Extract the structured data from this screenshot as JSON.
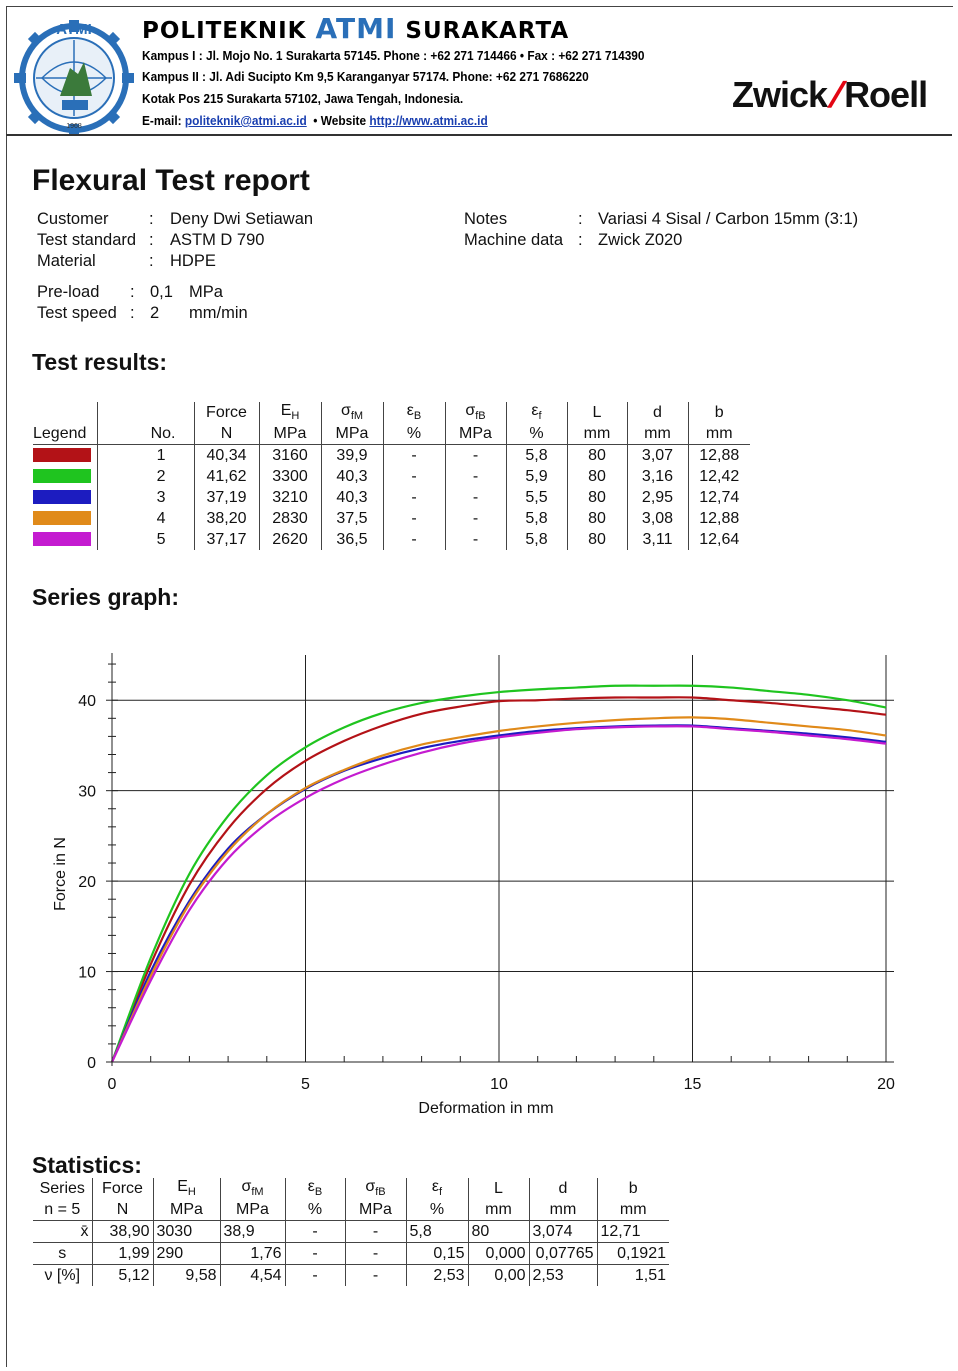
{
  "header": {
    "institution_prefix": "POLITEKNIK",
    "institution_main": "ATMI",
    "institution_suffix": "SURAKARTA",
    "logo_text": "ATMI",
    "logo_year": "1968",
    "address_line1": "Kampus  I : Jl. Mojo No. 1 Surakarta 57145.  Phone : +62 271 714466  •  Fax : +62 271 714390",
    "address_line2": "Kampus II : Jl. Adi Sucipto Km 9,5 Karanganyar 57174.  Phone: +62 271 7686220",
    "address_line3": "Kotak Pos 215  Surakarta 57102, Jawa Tengah, Indonesia.",
    "email_label": "E-mail:",
    "email": "politeknik@atmi.ac.id",
    "website_label": "•  Website",
    "website": "http://www.atmi.ac.id",
    "brand_left": "Zwick",
    "brand_slash": "/",
    "brand_right": "Roell",
    "brand_color": "#e30613",
    "atmi_color": "#2a6fb8"
  },
  "report": {
    "title": "Flexural Test report",
    "customer_label": "Customer",
    "customer": "Deny Dwi Setiawan",
    "standard_label": "Test standard",
    "standard": "ASTM D 790",
    "material_label": "Material",
    "material": "HDPE",
    "notes_label": "Notes",
    "notes": "Variasi 4 Sisal / Carbon 15mm (3:1)",
    "machine_label": "Machine data",
    "machine": "Zwick Z020",
    "preload_label": "Pre-load",
    "preload_value": "0,1",
    "preload_unit": "MPa",
    "speed_label": "Test speed",
    "speed_value": "2",
    "speed_unit": "mm/min"
  },
  "results": {
    "heading": "Test results:",
    "headers": [
      "Legend",
      "No.",
      "Force",
      "EH",
      "σfM",
      "εB",
      "σfB",
      "εf",
      "L",
      "d",
      "b"
    ],
    "units": [
      "",
      "",
      "N",
      "MPa",
      "MPa",
      "%",
      "MPa",
      "%",
      "mm",
      "mm",
      "mm"
    ],
    "rows": [
      {
        "color": "#b31217",
        "no": "1",
        "force": "40,34",
        "eh": "3160",
        "sfm": "39,9",
        "eb": "-",
        "sfb": "-",
        "ef": "5,8",
        "L": "80",
        "d": "3,07",
        "b": "12,88"
      },
      {
        "color": "#1fc41f",
        "no": "2",
        "force": "41,62",
        "eh": "3300",
        "sfm": "40,3",
        "eb": "-",
        "sfb": "-",
        "ef": "5,9",
        "L": "80",
        "d": "3,16",
        "b": "12,42"
      },
      {
        "color": "#1c1cc0",
        "no": "3",
        "force": "37,19",
        "eh": "3210",
        "sfm": "40,3",
        "eb": "-",
        "sfb": "-",
        "ef": "5,5",
        "L": "80",
        "d": "2,95",
        "b": "12,74"
      },
      {
        "color": "#e08a1a",
        "no": "4",
        "force": "38,20",
        "eh": "2830",
        "sfm": "37,5",
        "eb": "-",
        "sfb": "-",
        "ef": "5,8",
        "L": "80",
        "d": "3,08",
        "b": "12,88"
      },
      {
        "color": "#c41bd0",
        "no": "5",
        "force": "37,17",
        "eh": "2620",
        "sfm": "36,5",
        "eb": "-",
        "sfb": "-",
        "ef": "5,8",
        "L": "80",
        "d": "3,11",
        "b": "12,64"
      }
    ]
  },
  "graph_heading": "Series graph:",
  "chart_data": {
    "type": "line",
    "xlabel": "Deformation in mm",
    "ylabel": "Force in N",
    "xlim": [
      0,
      20
    ],
    "ylim": [
      0,
      45
    ],
    "xticks": [
      "0",
      "5",
      "10",
      "15",
      "20"
    ],
    "yticks": [
      "0",
      "10",
      "20",
      "30",
      "40"
    ],
    "grid": true,
    "series": [
      {
        "color": "#b31217",
        "points": [
          [
            0,
            0
          ],
          [
            1,
            10.8
          ],
          [
            2,
            19.6
          ],
          [
            3,
            25.8
          ],
          [
            4,
            30.2
          ],
          [
            5,
            33.3
          ],
          [
            6,
            35.5
          ],
          [
            7,
            37.2
          ],
          [
            8,
            38.5
          ],
          [
            9,
            39.3
          ],
          [
            10,
            39.9
          ],
          [
            11,
            40.0
          ],
          [
            12,
            40.2
          ],
          [
            13,
            40.3
          ],
          [
            14,
            40.3
          ],
          [
            15,
            40.3
          ],
          [
            16,
            40.0
          ],
          [
            17,
            39.7
          ],
          [
            18,
            39.3
          ],
          [
            19,
            38.9
          ],
          [
            20,
            38.4
          ]
        ]
      },
      {
        "color": "#1fc41f",
        "points": [
          [
            0,
            0
          ],
          [
            1,
            11.5
          ],
          [
            2,
            20.8
          ],
          [
            3,
            27.2
          ],
          [
            4,
            31.7
          ],
          [
            5,
            34.8
          ],
          [
            6,
            37.0
          ],
          [
            7,
            38.6
          ],
          [
            8,
            39.7
          ],
          [
            9,
            40.4
          ],
          [
            10,
            40.9
          ],
          [
            11,
            41.2
          ],
          [
            12,
            41.4
          ],
          [
            13,
            41.6
          ],
          [
            14,
            41.6
          ],
          [
            15,
            41.6
          ],
          [
            16,
            41.4
          ],
          [
            17,
            41.0
          ],
          [
            18,
            40.6
          ],
          [
            19,
            40.0
          ],
          [
            20,
            39.2
          ]
        ]
      },
      {
        "color": "#1c1cc0",
        "points": [
          [
            0,
            0
          ],
          [
            1,
            10.0
          ],
          [
            2,
            17.8
          ],
          [
            3,
            23.6
          ],
          [
            4,
            27.4
          ],
          [
            5,
            30.2
          ],
          [
            6,
            32.2
          ],
          [
            7,
            33.6
          ],
          [
            8,
            34.7
          ],
          [
            9,
            35.5
          ],
          [
            10,
            36.1
          ],
          [
            11,
            36.6
          ],
          [
            12,
            36.9
          ],
          [
            13,
            37.1
          ],
          [
            14,
            37.2
          ],
          [
            15,
            37.2
          ],
          [
            16,
            36.9
          ],
          [
            17,
            36.6
          ],
          [
            18,
            36.3
          ],
          [
            19,
            35.9
          ],
          [
            20,
            35.4
          ]
        ]
      },
      {
        "color": "#e08a1a",
        "points": [
          [
            0,
            0
          ],
          [
            1,
            9.5
          ],
          [
            2,
            17.5
          ],
          [
            3,
            23.3
          ],
          [
            4,
            27.4
          ],
          [
            5,
            30.3
          ],
          [
            6,
            32.3
          ],
          [
            7,
            33.9
          ],
          [
            8,
            35.1
          ],
          [
            9,
            35.9
          ],
          [
            10,
            36.6
          ],
          [
            11,
            37.1
          ],
          [
            12,
            37.5
          ],
          [
            13,
            37.8
          ],
          [
            14,
            38.0
          ],
          [
            15,
            38.1
          ],
          [
            16,
            37.9
          ],
          [
            17,
            37.5
          ],
          [
            18,
            37.1
          ],
          [
            19,
            36.7
          ],
          [
            20,
            36.1
          ]
        ]
      },
      {
        "color": "#c41bd0",
        "points": [
          [
            0,
            0
          ],
          [
            1,
            9.0
          ],
          [
            2,
            16.8
          ],
          [
            3,
            22.5
          ],
          [
            4,
            26.4
          ],
          [
            5,
            29.2
          ],
          [
            6,
            31.3
          ],
          [
            7,
            32.9
          ],
          [
            8,
            34.2
          ],
          [
            9,
            35.2
          ],
          [
            10,
            35.9
          ],
          [
            11,
            36.4
          ],
          [
            12,
            36.8
          ],
          [
            13,
            37.0
          ],
          [
            14,
            37.1
          ],
          [
            15,
            37.1
          ],
          [
            16,
            36.8
          ],
          [
            17,
            36.5
          ],
          [
            18,
            36.1
          ],
          [
            19,
            35.7
          ],
          [
            20,
            35.2
          ]
        ]
      }
    ]
  },
  "statistics": {
    "heading": "Statistics:",
    "headers": [
      "Series",
      "Force",
      "EH",
      "σfM",
      "εB",
      "σfB",
      "εf",
      "L",
      "d",
      "b"
    ],
    "units": [
      "n = 5",
      "N",
      "MPa",
      "MPa",
      "%",
      "MPa",
      "%",
      "mm",
      "mm",
      "mm"
    ],
    "rows": [
      {
        "label": "x̄",
        "force": "38,90",
        "eh": "3030",
        "sfm": "38,9",
        "eb": "-",
        "sfb": "-",
        "ef": "5,8",
        "L": "80",
        "d": "3,074",
        "b": "12,71"
      },
      {
        "label": "s",
        "force": "1,99",
        "eh": "290",
        "sfm": "1,76",
        "eb": "-",
        "sfb": "-",
        "ef": "0,15",
        "L": "0,000",
        "d": "0,07765",
        "b": "0,1921"
      },
      {
        "label": "ν [%]",
        "force": "5,12",
        "eh": "9,58",
        "sfm": "4,54",
        "eb": "-",
        "sfb": "-",
        "ef": "2,53",
        "L": "0,00",
        "d": "2,53",
        "b": "1,51"
      }
    ]
  }
}
